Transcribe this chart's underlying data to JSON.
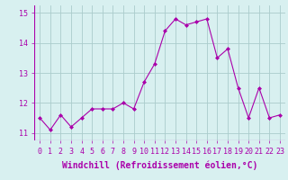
{
  "x": [
    0,
    1,
    2,
    3,
    4,
    5,
    6,
    7,
    8,
    9,
    10,
    11,
    12,
    13,
    14,
    15,
    16,
    17,
    18,
    19,
    20,
    21,
    22,
    23
  ],
  "y": [
    11.5,
    11.1,
    11.6,
    11.2,
    11.5,
    11.8,
    11.8,
    11.8,
    12.0,
    11.8,
    12.7,
    13.3,
    14.4,
    14.8,
    14.6,
    14.7,
    14.8,
    13.5,
    13.8,
    12.5,
    11.5,
    12.5,
    11.5,
    11.6
  ],
  "line_color": "#aa00aa",
  "marker": "D",
  "marker_size": 2,
  "bg_color": "#d8f0f0",
  "grid_color": "#aacccc",
  "xlabel": "Windchill (Refroidissement éolien,°C)",
  "xlim": [
    -0.5,
    23.5
  ],
  "ylim": [
    10.75,
    15.25
  ],
  "yticks": [
    11,
    12,
    13,
    14,
    15
  ],
  "xticks": [
    0,
    1,
    2,
    3,
    4,
    5,
    6,
    7,
    8,
    9,
    10,
    11,
    12,
    13,
    14,
    15,
    16,
    17,
    18,
    19,
    20,
    21,
    22,
    23
  ],
  "xtick_labels": [
    "0",
    "1",
    "2",
    "3",
    "4",
    "5",
    "6",
    "7",
    "8",
    "9",
    "10",
    "11",
    "12",
    "13",
    "14",
    "15",
    "16",
    "17",
    "18",
    "19",
    "20",
    "21",
    "22",
    "23"
  ],
  "tick_fontsize": 6,
  "xlabel_fontsize": 7
}
